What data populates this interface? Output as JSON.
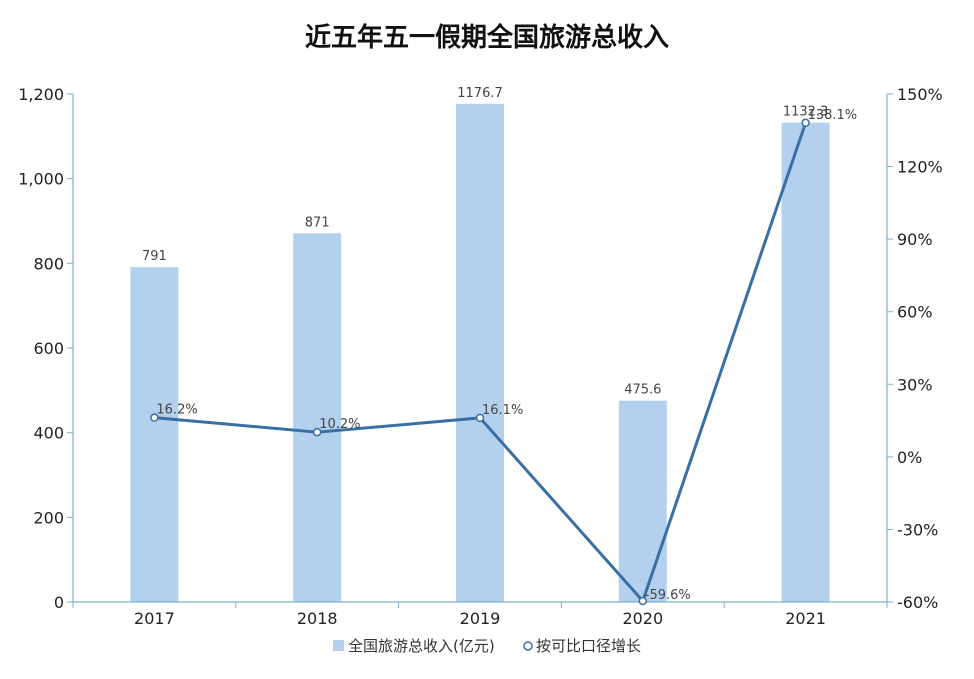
{
  "chart_data": {
    "type": "bar",
    "title": "近五年五一假期全国旅游总收入",
    "categories": [
      "2017",
      "2018",
      "2019",
      "2020",
      "2021"
    ],
    "series": [
      {
        "name": "全国旅游总收入(亿元)",
        "type": "bar",
        "axis": "left",
        "values": [
          791,
          871,
          1176.7,
          475.6,
          1132.3
        ],
        "labels": [
          "791",
          "871",
          "1176.7",
          "475.6",
          "1132.3"
        ]
      },
      {
        "name": "按可比口径增长",
        "type": "line",
        "axis": "right",
        "values": [
          16.2,
          10.2,
          16.1,
          -59.6,
          138.1
        ],
        "labels": [
          "16.2%",
          "10.2%",
          "16.1%",
          "-59.6%",
          "138.1%"
        ]
      }
    ],
    "y_left": {
      "min": 0,
      "max": 1200,
      "ticks": [
        0,
        200,
        400,
        600,
        800,
        1000,
        1200
      ],
      "tick_labels": [
        "0",
        "200",
        "400",
        "600",
        "800",
        "1,000",
        "1,200"
      ]
    },
    "y_right": {
      "min": -60,
      "max": 150,
      "ticks": [
        -60,
        -30,
        0,
        30,
        60,
        90,
        120,
        150
      ],
      "tick_labels": [
        "-60%",
        "-30%",
        "0%",
        "30%",
        "60%",
        "90%",
        "120%",
        "150%"
      ]
    },
    "grid": false,
    "legend_position": "bottom-center",
    "colors": {
      "bar": "#b3d1ee",
      "line": "#3a6fa3",
      "axis": "#7fb0c9"
    }
  }
}
